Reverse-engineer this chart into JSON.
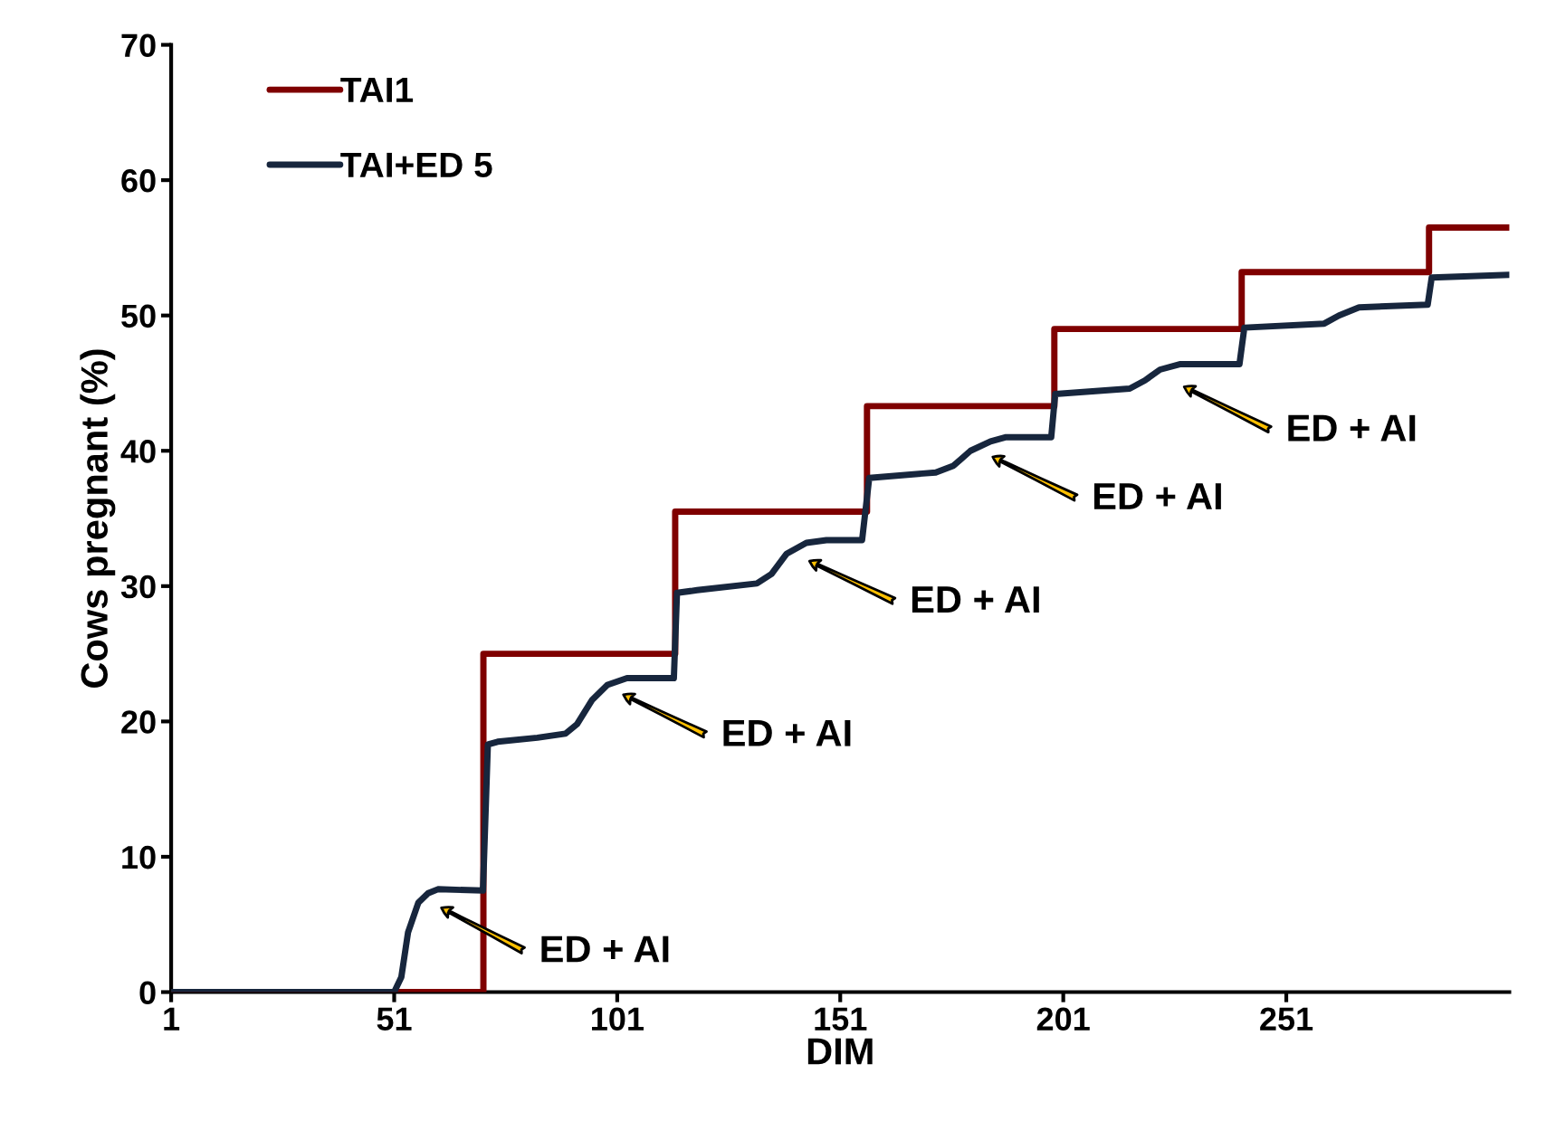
{
  "chart_data": {
    "type": "line",
    "xlabel": "DIM",
    "ylabel": "Cows pregnant (%)",
    "xlim": [
      1,
      301
    ],
    "ylim": [
      0,
      70
    ],
    "xticks": [
      1,
      51,
      101,
      151,
      201,
      251
    ],
    "yticks": [
      0,
      10,
      20,
      30,
      40,
      50,
      60,
      70
    ],
    "grid": false,
    "legend": "top left",
    "marker": "none",
    "line_style": "solid",
    "series": [
      {
        "name": "TAI1",
        "color": "#7f0000",
        "type": "step",
        "x": [
          1,
          71,
          114,
          157,
          199,
          241,
          283,
          301
        ],
        "values": [
          0,
          25,
          35.5,
          43.3,
          49,
          53.2,
          56.5,
          56.5
        ]
      },
      {
        "name": "TAI+ED 5",
        "color": "#17263d",
        "x": [
          1,
          51,
          52.6,
          54.1,
          56.4,
          58.6,
          60.8,
          70.9,
          72,
          74.2,
          83.1,
          89.4,
          92,
          95.4,
          98.8,
          103.2,
          113.7,
          114.4,
          118.9,
          132.3,
          135.6,
          139,
          143.4,
          147.9,
          155.9,
          157.5,
          172.4,
          176.4,
          180.2,
          184.7,
          188,
          198.3,
          199.2,
          215.9,
          219.3,
          222.7,
          227.1,
          240.5,
          241.6,
          259.5,
          262.8,
          267.3,
          282.7,
          283.6,
          301
        ],
        "values": [
          0,
          0,
          1.1,
          4.4,
          6.6,
          7.3,
          7.6,
          7.5,
          18.3,
          18.5,
          18.8,
          19.1,
          19.8,
          21.6,
          22.7,
          23.2,
          23.2,
          29.5,
          29.7,
          30.2,
          30.9,
          32.4,
          33.2,
          33.4,
          33.4,
          38,
          38.4,
          38.9,
          40,
          40.7,
          41,
          41,
          44.2,
          44.6,
          45.2,
          46,
          46.4,
          46.4,
          49.1,
          49.4,
          50,
          50.6,
          50.8,
          52.8,
          53
        ]
      }
    ],
    "annotations": [
      "ED + AI",
      "ED + AI",
      "ED + AI",
      "ED + AI",
      "ED + AI"
    ]
  }
}
